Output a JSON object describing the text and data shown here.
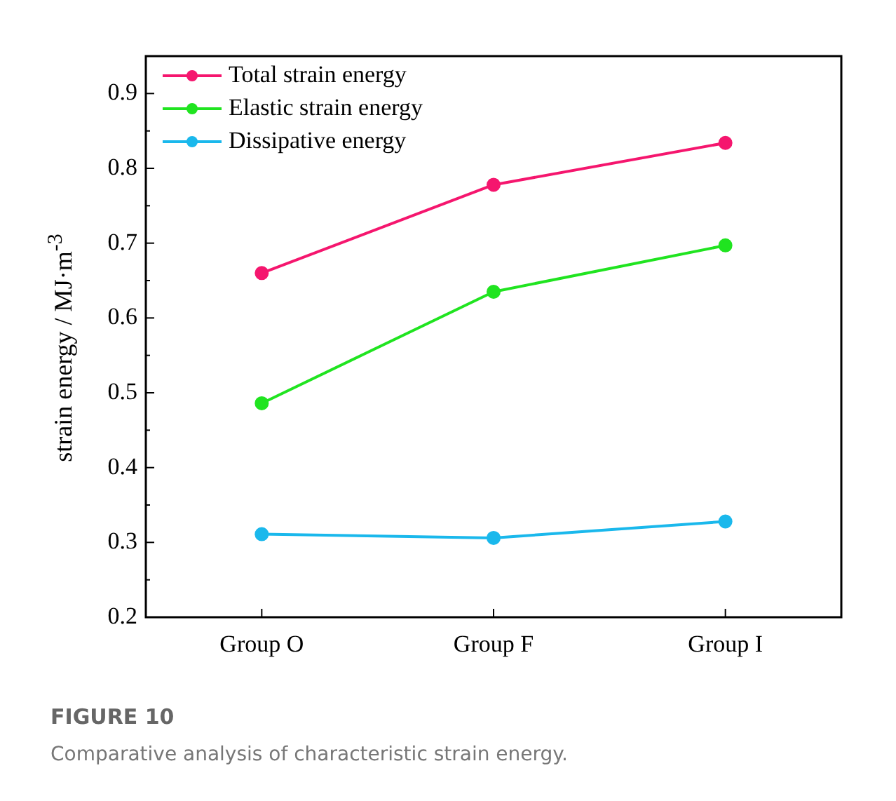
{
  "chart_data": {
    "type": "line",
    "title": "FIGURE 10",
    "subtitle": "Comparative analysis of characteristic strain energy.",
    "ylabel": "strain energy / MJ·m$^{-3}$",
    "categories": [
      "Group O",
      "Group F",
      "Group I"
    ],
    "series": [
      {
        "name": "Total strain energy",
        "color": "#f5166e",
        "values": [
          0.66,
          0.778,
          0.834
        ]
      },
      {
        "name": "Elastic strain energy",
        "color": "#20e420",
        "values": [
          0.486,
          0.635,
          0.697
        ]
      },
      {
        "name": "Dissipative energy",
        "color": "#1ab8ec",
        "values": [
          0.311,
          0.306,
          0.328
        ]
      }
    ],
    "ylim": [
      0.2,
      0.95
    ],
    "yticks": [
      0.2,
      {
        "value": 0.25,
        "label": null
      },
      0.3,
      {
        "value": 0.35,
        "label": null
      },
      0.4,
      {
        "value": 0.45,
        "label": null
      },
      0.5,
      {
        "value": 0.55,
        "label": null
      },
      0.6,
      {
        "value": 0.65,
        "label": null
      },
      0.7,
      {
        "value": 0.75,
        "label": null
      },
      0.8,
      {
        "value": 0.85,
        "label": null
      },
      0.9
    ],
    "grid": false,
    "legend": "top left",
    "marker": "circle",
    "line_style": "solid"
  }
}
